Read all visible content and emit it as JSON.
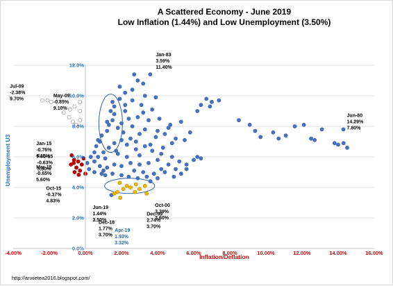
{
  "title": {
    "line1": "A Scattered Economy - June 2019",
    "line2": "Low Inflation (1.44%) and Low Unemployment (3.50%)"
  },
  "footer": "http://anxietea2016.blogspot.com/",
  "colors": {
    "main": "#4472c4",
    "deflation": "#ffffff",
    "mild_deflation": "#c00000",
    "recent": "#f0b800",
    "grid": "#d9d9d9",
    "x_axis_text": "#e00000",
    "y_axis_text": "#1f6fc2"
  },
  "chart_data": {
    "type": "scatter",
    "title": "A Scattered Economy - June 2019",
    "subtitle": "Low Inflation (1.44%) and Low Unemployment (3.50%)",
    "xlabel": "Inflation/Deflation",
    "ylabel": "Unemployment U3",
    "xlim": [
      -4,
      16
    ],
    "ylim": [
      0,
      12
    ],
    "x_ticks": [
      "-4.00%",
      "-2.00%",
      "0.00%",
      "2.00%",
      "4.00%",
      "6.00%",
      "8.00%",
      "10.00%",
      "12.00%",
      "14.00%",
      "16.00%"
    ],
    "y_ticks": [
      "0.0%",
      "2.0%",
      "4.0%",
      "6.0%",
      "8.0%",
      "10.0%",
      "12.0%"
    ],
    "grid": "horizontal",
    "legend": "none",
    "series": [
      {
        "values": [
          [
            2.7,
            11.4
          ],
          [
            3.59,
            11.4
          ],
          [
            3.2,
            10.8
          ],
          [
            2.6,
            10.4
          ],
          [
            2.2,
            10.2
          ],
          [
            1.9,
            9.8
          ],
          [
            1.5,
            9.6
          ],
          [
            1.6,
            9.3
          ],
          [
            1.4,
            9.0
          ],
          [
            1.6,
            8.8
          ],
          [
            1.5,
            8.4
          ],
          [
            1.3,
            8.1
          ],
          [
            1.2,
            7.7
          ],
          [
            0.9,
            7.4
          ],
          [
            0.8,
            7.0
          ],
          [
            0.6,
            6.7
          ],
          [
            0.5,
            6.3
          ],
          [
            0.3,
            6.0
          ],
          [
            0.1,
            5.6
          ],
          [
            0.2,
            5.2
          ],
          [
            0.5,
            5.0
          ],
          [
            0.9,
            4.9
          ],
          [
            2.2,
            9.4
          ],
          [
            2.6,
            9.7
          ],
          [
            3.3,
            10.0
          ],
          [
            3.9,
            9.9
          ],
          [
            3.7,
            9.1
          ],
          [
            3.2,
            8.9
          ],
          [
            2.9,
            8.6
          ],
          [
            2.4,
            8.5
          ],
          [
            2.0,
            8.2
          ],
          [
            2.6,
            8.0
          ],
          [
            3.3,
            7.8
          ],
          [
            4.0,
            7.7
          ],
          [
            4.6,
            7.9
          ],
          [
            3.0,
            7.5
          ],
          [
            2.5,
            7.2
          ],
          [
            2.0,
            7.1
          ],
          [
            1.6,
            6.9
          ],
          [
            1.3,
            6.6
          ],
          [
            1.0,
            6.3
          ],
          [
            1.8,
            6.2
          ],
          [
            2.3,
            6.0
          ],
          [
            3.0,
            6.1
          ],
          [
            3.7,
            6.4
          ],
          [
            4.3,
            6.6
          ],
          [
            5.0,
            7.2
          ],
          [
            5.8,
            7.6
          ],
          [
            5.5,
            7.1
          ],
          [
            4.8,
            6.9
          ],
          [
            4.0,
            5.8
          ],
          [
            3.5,
            5.6
          ],
          [
            3.0,
            5.5
          ],
          [
            2.5,
            5.6
          ],
          [
            2.0,
            5.4
          ],
          [
            1.6,
            5.5
          ],
          [
            1.2,
            5.3
          ],
          [
            0.8,
            5.4
          ],
          [
            0.5,
            5.7
          ],
          [
            2.7,
            5.1
          ],
          [
            3.2,
            5.0
          ],
          [
            3.8,
            4.9
          ],
          [
            4.4,
            5.0
          ],
          [
            5.0,
            5.2
          ],
          [
            5.6,
            5.5
          ],
          [
            6.0,
            5.8
          ],
          [
            6.2,
            6.0
          ],
          [
            6.4,
            5.9
          ],
          [
            4.6,
            5.5
          ],
          [
            4.2,
            5.2
          ],
          [
            3.4,
            4.7
          ],
          [
            2.9,
            4.6
          ],
          [
            2.4,
            4.7
          ],
          [
            2.0,
            4.8
          ],
          [
            1.5,
            4.9
          ],
          [
            1.1,
            4.8
          ],
          [
            3.6,
            4.4
          ],
          [
            4.0,
            4.6
          ],
          [
            4.9,
            4.7
          ],
          [
            5.3,
            4.9
          ],
          [
            5.6,
            5.2
          ],
          [
            6.7,
            9.8
          ],
          [
            7.0,
            9.6
          ],
          [
            6.4,
            9.4
          ],
          [
            6.2,
            9.0
          ],
          [
            7.4,
            9.7
          ],
          [
            6.9,
            9.3
          ],
          [
            8.5,
            8.4
          ],
          [
            9.1,
            8.1
          ],
          [
            9.4,
            7.7
          ],
          [
            9.7,
            7.3
          ],
          [
            10.4,
            7.6
          ],
          [
            11.1,
            7.4
          ],
          [
            10.7,
            7.2
          ],
          [
            11.6,
            8.0
          ],
          [
            12.1,
            8.1
          ],
          [
            12.5,
            7.2
          ],
          [
            12.7,
            7.1
          ],
          [
            13.1,
            7.8
          ],
          [
            13.8,
            6.9
          ],
          [
            14.0,
            6.8
          ],
          [
            14.29,
            7.8
          ],
          [
            14.3,
            6.9
          ],
          [
            14.5,
            6.6
          ],
          [
            1.8,
            7.9
          ],
          [
            2.1,
            7.6
          ],
          [
            2.8,
            7.0
          ],
          [
            3.6,
            6.8
          ],
          [
            4.2,
            6.2
          ],
          [
            4.8,
            6.0
          ],
          [
            5.2,
            5.7
          ],
          [
            1.7,
            6.4
          ],
          [
            1.1,
            5.9
          ],
          [
            2.8,
            6.5
          ],
          [
            3.3,
            6.7
          ],
          [
            0.7,
            6.0
          ],
          [
            3.9,
            7.3
          ],
          [
            4.4,
            7.5
          ],
          [
            2.3,
            6.8
          ],
          [
            3.1,
            9.4
          ],
          [
            1.9,
            10.6
          ],
          [
            2.9,
            11.0
          ],
          [
            1.2,
            8.3
          ],
          [
            0.7,
            7.1
          ],
          [
            1.0,
            5.1
          ],
          [
            4.7,
            8.1
          ],
          [
            5.3,
            8.3
          ],
          [
            4.1,
            8.5
          ],
          [
            3.5,
            8.4
          ],
          [
            2.2,
            9.0
          ],
          [
            1.44,
            3.5
          ]
        ]
      },
      {
        "values": [
          [
            -2.38,
            9.7
          ],
          [
            -2.1,
            9.7
          ],
          [
            -1.9,
            9.6
          ],
          [
            -1.5,
            9.8
          ],
          [
            -0.85,
            9.1
          ],
          [
            -0.6,
            9.3
          ],
          [
            -0.3,
            9.6
          ],
          [
            -0.3,
            9.0
          ],
          [
            -1.2,
            8.9
          ],
          [
            -0.9,
            8.6
          ],
          [
            -0.3,
            8.4
          ],
          [
            -0.5,
            8.1
          ],
          [
            -0.7,
            8.3
          ]
        ]
      },
      {
        "values": [
          [
            -0.76,
            6.1
          ],
          [
            -0.63,
            5.8
          ],
          [
            -0.65,
            5.6
          ],
          [
            -0.37,
            4.83
          ],
          [
            -0.2,
            5.5
          ],
          [
            -0.3,
            5.1
          ],
          [
            -0.5,
            5.3
          ],
          [
            -0.8,
            5.5
          ],
          [
            -0.1,
            5.9
          ],
          [
            -0.6,
            5.0
          ],
          [
            0.0,
            4.9
          ],
          [
            -0.4,
            5.7
          ]
        ]
      },
      {
        "values": [
          [
            1.77,
            3.7
          ],
          [
            1.93,
            3.32
          ],
          [
            2.74,
            3.7
          ],
          [
            3.39,
            3.6
          ],
          [
            2.1,
            3.9
          ],
          [
            2.5,
            4.0
          ],
          [
            3.0,
            3.9
          ],
          [
            1.6,
            3.6
          ],
          [
            2.3,
            4.1
          ],
          [
            2.8,
            4.2
          ],
          [
            1.9,
            4.3
          ],
          [
            3.3,
            4.1
          ]
        ]
      }
    ],
    "annotations": [
      {
        "lines": [
          "Jan-83",
          "3.59%",
          "11.40%"
        ],
        "x": 3.59,
        "y": 11.4
      },
      {
        "lines": [
          "Jul-09",
          "-2.38%",
          "9.70%"
        ],
        "x": -2.38,
        "y": 9.7
      },
      {
        "lines": [
          "May-09",
          "-0.85%",
          "9.10%"
        ],
        "x": -0.85,
        "y": 9.1
      },
      {
        "lines": [
          "Jan-15",
          "-0.76%",
          "6.10%"
        ],
        "x": -0.76,
        "y": 6.1
      },
      {
        "lines": [
          "Feb-15",
          "-0.63%",
          "5.80%"
        ],
        "x": -0.63,
        "y": 5.8
      },
      {
        "lines": [
          "Mar-15",
          "-0.65%",
          "5.60%"
        ],
        "x": -0.65,
        "y": 5.6
      },
      {
        "lines": [
          "Oct-15",
          "-0.37%",
          "4.83%"
        ],
        "x": -0.37,
        "y": 4.83
      },
      {
        "lines": [
          "Jun-19",
          "1.44%",
          "3.50%"
        ],
        "x": 1.44,
        "y": 3.5
      },
      {
        "lines": [
          "Dec-18",
          "1.77%",
          "3.70%"
        ],
        "x": 1.77,
        "y": 3.7
      },
      {
        "lines": [
          "Apr-19",
          "1.93%",
          "3.32%"
        ],
        "x": 1.93,
        "y": 3.32,
        "color": "blue"
      },
      {
        "lines": [
          "Dec-99",
          "2.74%",
          "3.70%"
        ],
        "x": 2.74,
        "y": 3.7
      },
      {
        "lines": [
          "Oct-00",
          "3.39%",
          "3.60%"
        ],
        "x": 3.39,
        "y": 3.6
      },
      {
        "lines": [
          "Jun-80",
          "14.29%",
          "7.80%"
        ],
        "x": 14.29,
        "y": 7.8
      }
    ]
  }
}
